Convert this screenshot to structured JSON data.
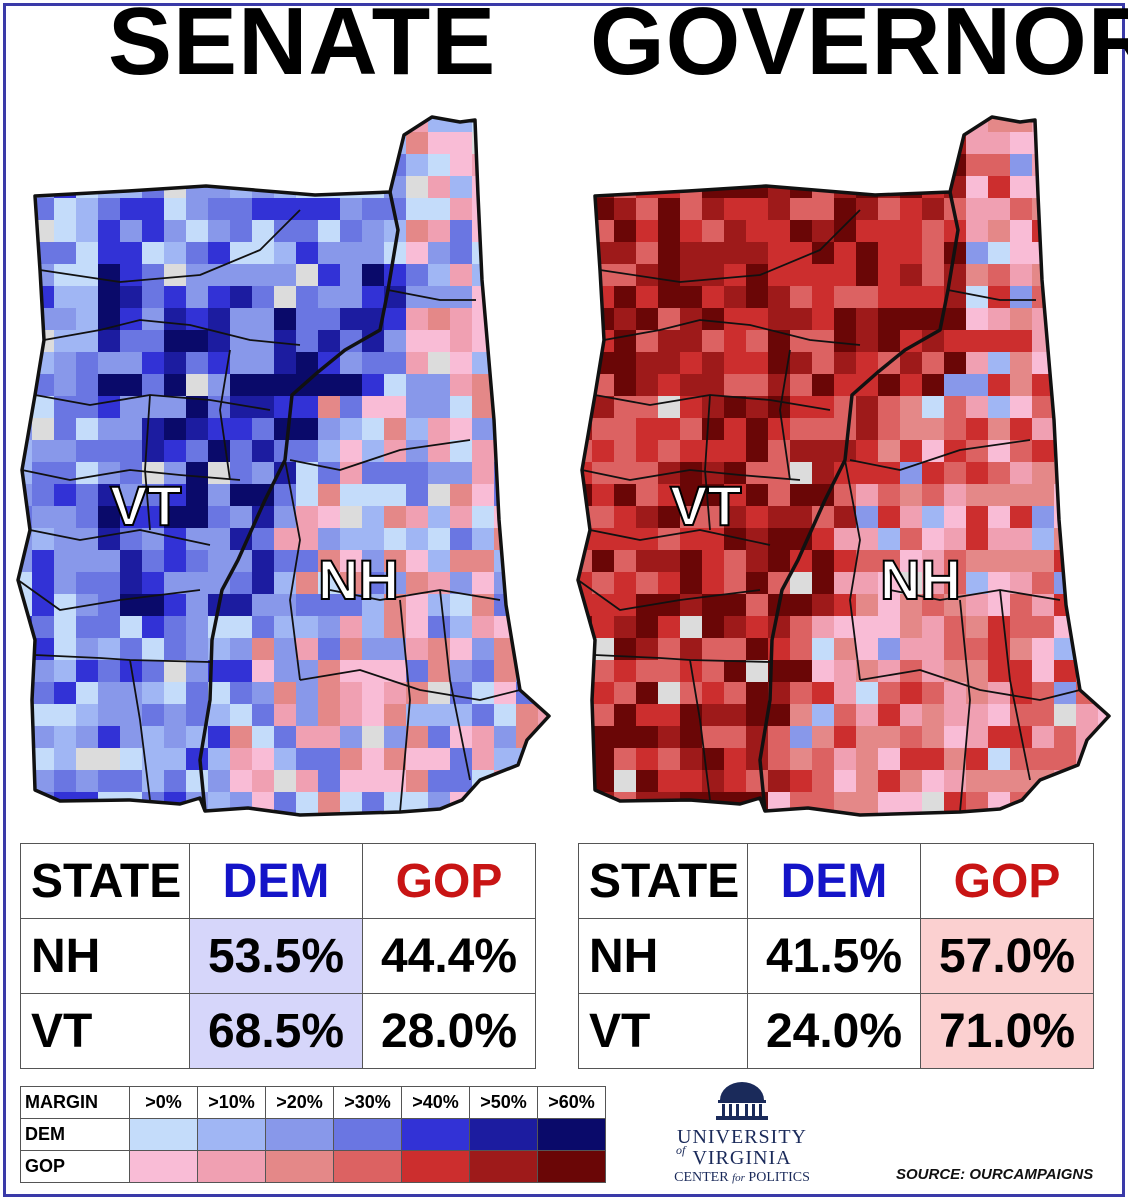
{
  "titles": {
    "left": "SENATE",
    "right": "GOVERNOR"
  },
  "map_labels": {
    "vt": "VT",
    "nh": "NH"
  },
  "senate_table": {
    "headers": {
      "state": "STATE",
      "dem": "DEM",
      "gop": "GOP"
    },
    "rows": [
      {
        "state": "NH",
        "dem": "53.5%",
        "gop": "44.4%"
      },
      {
        "state": "VT",
        "dem": "68.5%",
        "gop": "28.0%"
      }
    ]
  },
  "governor_table": {
    "headers": {
      "state": "STATE",
      "dem": "DEM",
      "gop": "GOP"
    },
    "rows": [
      {
        "state": "NH",
        "dem": "41.5%",
        "gop": "57.0%"
      },
      {
        "state": "VT",
        "dem": "24.0%",
        "gop": "71.0%"
      }
    ]
  },
  "legend": {
    "header": "MARGIN",
    "bins": [
      ">0%",
      ">10%",
      ">20%",
      ">30%",
      ">40%",
      ">50%",
      ">60%"
    ],
    "dem_label": "DEM",
    "gop_label": "GOP",
    "dem_colors": [
      "#c4dcfa",
      "#a0b6f4",
      "#8898ea",
      "#6a76e2",
      "#3232d6",
      "#1c1ca0",
      "#0a0a6a"
    ],
    "gop_colors": [
      "#f9bcd6",
      "#f0a0b2",
      "#e48888",
      "#dc6262",
      "#cc2e2e",
      "#9e1a1a",
      "#6a0606"
    ]
  },
  "logo": {
    "line1": "UNIVERSITY",
    "of": "of",
    "line2": "VIRGINIA",
    "line3a": "CENTER",
    "line3b": "for",
    "line3c": "POLITICS"
  },
  "source": "SOURCE: OURCAMPAIGNS",
  "colors": {
    "frame": "#3a3aa8",
    "dem_text": "#1414c8",
    "gop_text": "#c81414",
    "no_data": "#dcdcdc"
  }
}
